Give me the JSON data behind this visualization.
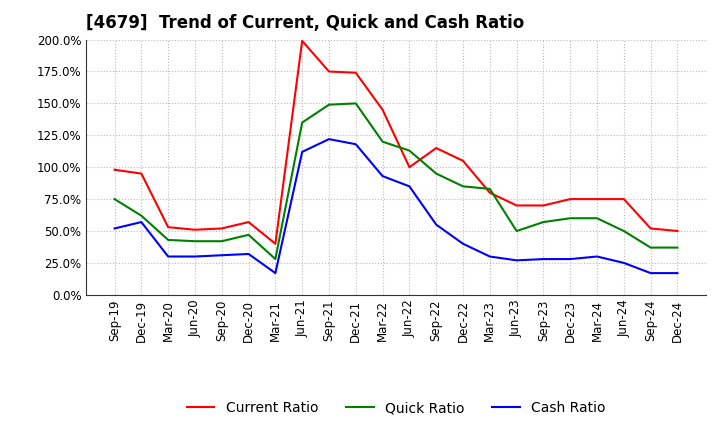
{
  "title": "[4679]  Trend of Current, Quick and Cash Ratio",
  "x_labels": [
    "Sep-19",
    "Dec-19",
    "Mar-20",
    "Jun-20",
    "Sep-20",
    "Dec-20",
    "Mar-21",
    "Jun-21",
    "Sep-21",
    "Dec-21",
    "Mar-22",
    "Jun-22",
    "Sep-22",
    "Dec-22",
    "Mar-23",
    "Jun-23",
    "Sep-23",
    "Dec-23",
    "Mar-24",
    "Jun-24",
    "Sep-24",
    "Dec-24"
  ],
  "current_ratio": [
    98,
    95,
    53,
    51,
    52,
    57,
    40,
    199,
    175,
    174,
    145,
    100,
    115,
    105,
    80,
    70,
    70,
    75,
    75,
    75,
    52,
    50
  ],
  "quick_ratio": [
    75,
    62,
    43,
    42,
    42,
    47,
    28,
    135,
    149,
    150,
    120,
    113,
    95,
    85,
    83,
    50,
    57,
    60,
    60,
    50,
    37,
    37
  ],
  "cash_ratio": [
    52,
    57,
    30,
    30,
    31,
    32,
    17,
    112,
    122,
    118,
    93,
    85,
    55,
    40,
    30,
    27,
    28,
    28,
    30,
    25,
    17,
    17
  ],
  "current_color": "#ff0000",
  "quick_color": "#008000",
  "cash_color": "#0000ff",
  "ylim": [
    0,
    200
  ],
  "yticks": [
    0,
    25,
    50,
    75,
    100,
    125,
    150,
    175,
    200
  ],
  "background_color": "#ffffff",
  "grid_color": "#bbbbbb",
  "title_fontsize": 12,
  "tick_fontsize": 8.5,
  "legend_fontsize": 10
}
